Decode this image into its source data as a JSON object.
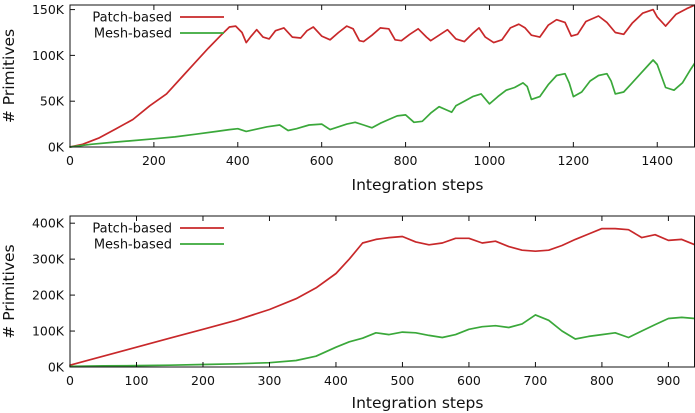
{
  "colors": {
    "patch": "#c8282a",
    "mesh": "#3aa83a",
    "axis": "#111111"
  },
  "chart_data": [
    {
      "type": "line",
      "title": "",
      "xlabel": "Integration steps",
      "ylabel": "# Primitives",
      "xlim": [
        0,
        1490
      ],
      "ylim": [
        0,
        155000
      ],
      "xticks": [
        0,
        200,
        400,
        600,
        800,
        1000,
        1200,
        1400
      ],
      "xtick_labels": [
        "0",
        "200",
        "400",
        "600",
        "800",
        "1000",
        "1200",
        "1400"
      ],
      "yticks": [
        0,
        50000,
        100000,
        150000
      ],
      "ytick_labels": [
        "0K",
        "50K",
        "100K",
        "150K"
      ],
      "grid": false,
      "legend_position": "top-left",
      "series": [
        {
          "name": "Patch-based",
          "color": "#c8282a",
          "x": [
            0,
            30,
            70,
            110,
            150,
            190,
            230,
            270,
            300,
            330,
            360,
            380,
            395,
            410,
            420,
            430,
            445,
            460,
            475,
            490,
            510,
            530,
            550,
            565,
            580,
            600,
            620,
            640,
            660,
            675,
            690,
            700,
            720,
            740,
            760,
            775,
            790,
            810,
            830,
            850,
            860,
            880,
            900,
            920,
            940,
            960,
            975,
            990,
            1010,
            1030,
            1050,
            1070,
            1085,
            1100,
            1120,
            1140,
            1160,
            1180,
            1195,
            1210,
            1230,
            1260,
            1280,
            1300,
            1320,
            1340,
            1365,
            1390,
            1400,
            1420,
            1445,
            1470,
            1490
          ],
          "y": [
            0,
            3000,
            10000,
            20000,
            30000,
            45000,
            58000,
            78000,
            93000,
            108000,
            122000,
            131000,
            132000,
            125000,
            114000,
            120000,
            128000,
            120000,
            118000,
            127000,
            130000,
            120000,
            119000,
            127000,
            131000,
            121000,
            117000,
            125000,
            132000,
            129000,
            116000,
            115000,
            122000,
            130000,
            129000,
            117000,
            116000,
            123000,
            129000,
            120000,
            116000,
            122000,
            128000,
            118000,
            115000,
            124000,
            130000,
            120000,
            114000,
            117000,
            130000,
            134000,
            130000,
            122000,
            120000,
            133000,
            139000,
            136000,
            121000,
            123000,
            137000,
            143000,
            136000,
            125000,
            123000,
            135000,
            146000,
            150000,
            142000,
            132000,
            145000,
            151000,
            155000
          ]
        },
        {
          "name": "Mesh-based",
          "color": "#3aa83a",
          "x": [
            0,
            50,
            100,
            150,
            200,
            250,
            300,
            350,
            380,
            400,
            420,
            440,
            470,
            500,
            520,
            540,
            570,
            600,
            620,
            640,
            660,
            680,
            700,
            720,
            740,
            760,
            780,
            800,
            820,
            840,
            860,
            880,
            900,
            910,
            920,
            940,
            960,
            980,
            1000,
            1020,
            1040,
            1060,
            1080,
            1090,
            1100,
            1120,
            1140,
            1160,
            1180,
            1190,
            1200,
            1220,
            1240,
            1260,
            1280,
            1290,
            1300,
            1320,
            1340,
            1360,
            1380,
            1390,
            1400,
            1420,
            1440,
            1460,
            1480,
            1490
          ],
          "y": [
            0,
            3000,
            5000,
            7000,
            9000,
            11000,
            14000,
            17000,
            19000,
            20000,
            17000,
            19000,
            22000,
            24000,
            18000,
            20000,
            24000,
            25000,
            19000,
            22000,
            25000,
            27000,
            24000,
            21000,
            26000,
            30000,
            34000,
            35000,
            27000,
            28000,
            37000,
            44000,
            40000,
            38000,
            45000,
            50000,
            55000,
            58000,
            47000,
            55000,
            62000,
            65000,
            70000,
            66000,
            52000,
            55000,
            68000,
            78000,
            80000,
            70000,
            55000,
            60000,
            72000,
            78000,
            80000,
            72000,
            58000,
            60000,
            70000,
            80000,
            90000,
            95000,
            90000,
            65000,
            62000,
            70000,
            85000,
            92000
          ]
        }
      ]
    },
    {
      "type": "line",
      "title": "",
      "xlabel": "Integration steps",
      "ylabel": "# Primitives",
      "xlim": [
        0,
        940
      ],
      "ylim": [
        0,
        420000
      ],
      "xticks": [
        0,
        100,
        200,
        300,
        400,
        500,
        600,
        700,
        800,
        900
      ],
      "xtick_labels": [
        "0",
        "100",
        "200",
        "300",
        "400",
        "500",
        "600",
        "700",
        "800",
        "900"
      ],
      "yticks": [
        0,
        100000,
        200000,
        300000,
        400000
      ],
      "ytick_labels": [
        "0K",
        "100K",
        "200K",
        "300K",
        "400K"
      ],
      "grid": false,
      "legend_position": "top-left",
      "series": [
        {
          "name": "Patch-based",
          "color": "#c8282a",
          "x": [
            0,
            20,
            50,
            100,
            150,
            200,
            250,
            300,
            340,
            370,
            400,
            420,
            440,
            460,
            480,
            500,
            520,
            540,
            560,
            580,
            600,
            620,
            640,
            660,
            680,
            700,
            720,
            740,
            760,
            780,
            800,
            820,
            840,
            860,
            880,
            900,
            920,
            940
          ],
          "y": [
            5000,
            15000,
            30000,
            55000,
            80000,
            105000,
            130000,
            160000,
            190000,
            220000,
            260000,
            300000,
            345000,
            355000,
            360000,
            363000,
            348000,
            340000,
            345000,
            358000,
            358000,
            345000,
            350000,
            335000,
            325000,
            322000,
            325000,
            338000,
            355000,
            370000,
            385000,
            385000,
            382000,
            360000,
            368000,
            352000,
            355000,
            340000
          ]
        },
        {
          "name": "Mesh-based",
          "color": "#3aa83a",
          "x": [
            0,
            50,
            100,
            150,
            200,
            250,
            300,
            340,
            370,
            400,
            420,
            440,
            460,
            480,
            500,
            520,
            540,
            560,
            580,
            600,
            620,
            640,
            660,
            680,
            700,
            720,
            740,
            760,
            780,
            800,
            820,
            840,
            860,
            880,
            900,
            920,
            940
          ],
          "y": [
            2000,
            3000,
            4000,
            5000,
            7000,
            9000,
            12000,
            18000,
            30000,
            55000,
            70000,
            80000,
            95000,
            90000,
            97000,
            95000,
            88000,
            82000,
            90000,
            105000,
            112000,
            115000,
            110000,
            120000,
            145000,
            130000,
            100000,
            78000,
            85000,
            90000,
            95000,
            82000,
            100000,
            118000,
            135000,
            138000,
            135000
          ]
        }
      ]
    }
  ]
}
